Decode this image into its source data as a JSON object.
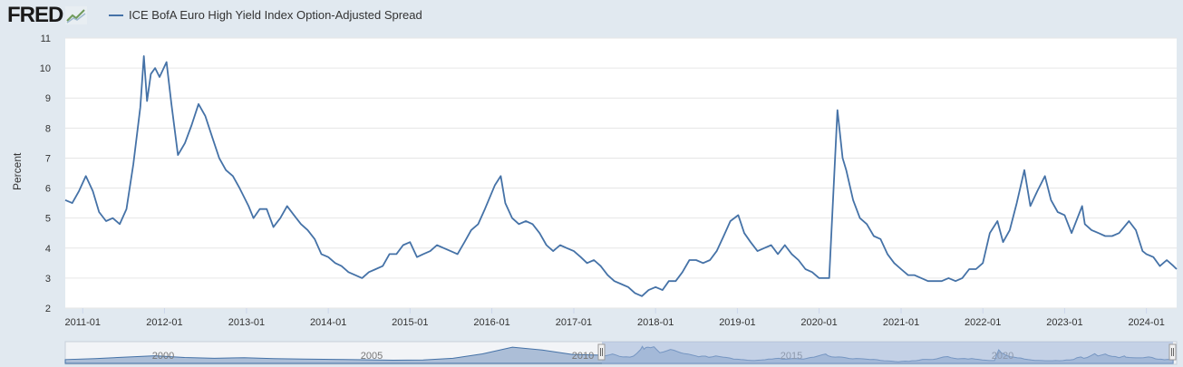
{
  "logo": {
    "text": "FRED",
    "icon": "trend-line-icon"
  },
  "chart_data": {
    "type": "line",
    "title": "",
    "ylabel": "Percent",
    "xlabel": "",
    "ylim": [
      2,
      11
    ],
    "yticks": [
      "2",
      "3",
      "4",
      "5",
      "6",
      "7",
      "8",
      "9",
      "10",
      "11"
    ],
    "xlim": [
      "2010-10-15",
      "2024-05-15"
    ],
    "xticks": [
      "2011-01",
      "2012-01",
      "2013-01",
      "2014-01",
      "2015-01",
      "2016-01",
      "2017-01",
      "2018-01",
      "2019-01",
      "2020-01",
      "2021-01",
      "2022-01",
      "2023-01",
      "2024-01"
    ],
    "grid": true,
    "legend_position": "top-left",
    "colors": {
      "series": "#4572a7",
      "plot_bg": "#ffffff",
      "page_bg": "#e1e9f0",
      "grid": "#e6e6e6"
    },
    "series": [
      {
        "name": "ICE BofA Euro High Yield Index Option-Adjusted Spread",
        "points": [
          [
            "2010-10-15",
            5.6
          ],
          [
            "2010-11-15",
            5.5
          ],
          [
            "2010-12-15",
            5.9
          ],
          [
            "2011-01-15",
            6.4
          ],
          [
            "2011-02-15",
            5.9
          ],
          [
            "2011-03-15",
            5.2
          ],
          [
            "2011-04-15",
            4.9
          ],
          [
            "2011-05-15",
            5.0
          ],
          [
            "2011-06-15",
            4.8
          ],
          [
            "2011-07-15",
            5.3
          ],
          [
            "2011-08-15",
            6.8
          ],
          [
            "2011-09-15",
            8.7
          ],
          [
            "2011-10-01",
            10.4
          ],
          [
            "2011-10-15",
            8.9
          ],
          [
            "2011-11-01",
            9.8
          ],
          [
            "2011-11-20",
            10.0
          ],
          [
            "2011-12-10",
            9.7
          ],
          [
            "2012-01-10",
            10.2
          ],
          [
            "2012-02-01",
            8.8
          ],
          [
            "2012-03-01",
            7.1
          ],
          [
            "2012-04-01",
            7.5
          ],
          [
            "2012-05-01",
            8.1
          ],
          [
            "2012-06-01",
            8.8
          ],
          [
            "2012-07-01",
            8.4
          ],
          [
            "2012-08-01",
            7.7
          ],
          [
            "2012-09-01",
            7.0
          ],
          [
            "2012-10-01",
            6.6
          ],
          [
            "2012-11-01",
            6.4
          ],
          [
            "2012-12-01",
            6.0
          ],
          [
            "2013-01-10",
            5.4
          ],
          [
            "2013-02-01",
            5.0
          ],
          [
            "2013-03-01",
            5.3
          ],
          [
            "2013-04-01",
            5.3
          ],
          [
            "2013-05-01",
            4.7
          ],
          [
            "2013-06-01",
            5.0
          ],
          [
            "2013-07-01",
            5.4
          ],
          [
            "2013-08-01",
            5.1
          ],
          [
            "2013-09-01",
            4.8
          ],
          [
            "2013-10-01",
            4.6
          ],
          [
            "2013-11-01",
            4.3
          ],
          [
            "2013-12-01",
            3.8
          ],
          [
            "2014-01-01",
            3.7
          ],
          [
            "2014-02-01",
            3.5
          ],
          [
            "2014-03-01",
            3.4
          ],
          [
            "2014-04-01",
            3.2
          ],
          [
            "2014-05-01",
            3.1
          ],
          [
            "2014-06-01",
            3.0
          ],
          [
            "2014-07-01",
            3.2
          ],
          [
            "2014-08-01",
            3.3
          ],
          [
            "2014-09-01",
            3.4
          ],
          [
            "2014-10-01",
            3.8
          ],
          [
            "2014-11-01",
            3.8
          ],
          [
            "2014-12-01",
            4.1
          ],
          [
            "2015-01-01",
            4.2
          ],
          [
            "2015-02-01",
            3.7
          ],
          [
            "2015-03-01",
            3.8
          ],
          [
            "2015-04-01",
            3.9
          ],
          [
            "2015-05-01",
            4.1
          ],
          [
            "2015-06-01",
            4.0
          ],
          [
            "2015-07-01",
            3.9
          ],
          [
            "2015-08-01",
            3.8
          ],
          [
            "2015-09-01",
            4.2
          ],
          [
            "2015-10-01",
            4.6
          ],
          [
            "2015-11-01",
            4.8
          ],
          [
            "2015-12-01",
            5.3
          ],
          [
            "2016-01-15",
            6.1
          ],
          [
            "2016-02-10",
            6.4
          ],
          [
            "2016-03-01",
            5.5
          ],
          [
            "2016-04-01",
            5.0
          ],
          [
            "2016-05-01",
            4.8
          ],
          [
            "2016-06-01",
            4.9
          ],
          [
            "2016-07-01",
            4.8
          ],
          [
            "2016-08-01",
            4.5
          ],
          [
            "2016-09-01",
            4.1
          ],
          [
            "2016-10-01",
            3.9
          ],
          [
            "2016-11-01",
            4.1
          ],
          [
            "2016-12-01",
            4.0
          ],
          [
            "2017-01-01",
            3.9
          ],
          [
            "2017-02-01",
            3.7
          ],
          [
            "2017-03-01",
            3.5
          ],
          [
            "2017-04-01",
            3.6
          ],
          [
            "2017-05-01",
            3.4
          ],
          [
            "2017-06-01",
            3.1
          ],
          [
            "2017-07-01",
            2.9
          ],
          [
            "2017-08-01",
            2.8
          ],
          [
            "2017-09-01",
            2.7
          ],
          [
            "2017-10-01",
            2.5
          ],
          [
            "2017-11-01",
            2.4
          ],
          [
            "2017-12-01",
            2.6
          ],
          [
            "2018-01-01",
            2.7
          ],
          [
            "2018-02-01",
            2.6
          ],
          [
            "2018-03-01",
            2.9
          ],
          [
            "2018-04-01",
            2.9
          ],
          [
            "2018-05-01",
            3.2
          ],
          [
            "2018-06-01",
            3.6
          ],
          [
            "2018-07-01",
            3.6
          ],
          [
            "2018-08-01",
            3.5
          ],
          [
            "2018-09-01",
            3.6
          ],
          [
            "2018-10-01",
            3.9
          ],
          [
            "2018-11-01",
            4.4
          ],
          [
            "2018-12-01",
            4.9
          ],
          [
            "2019-01-05",
            5.1
          ],
          [
            "2019-02-01",
            4.5
          ],
          [
            "2019-03-01",
            4.2
          ],
          [
            "2019-04-01",
            3.9
          ],
          [
            "2019-05-01",
            4.0
          ],
          [
            "2019-06-01",
            4.1
          ],
          [
            "2019-07-01",
            3.8
          ],
          [
            "2019-08-01",
            4.1
          ],
          [
            "2019-09-01",
            3.8
          ],
          [
            "2019-10-01",
            3.6
          ],
          [
            "2019-11-01",
            3.3
          ],
          [
            "2019-12-01",
            3.2
          ],
          [
            "2020-01-01",
            3.0
          ],
          [
            "2020-02-15",
            3.0
          ],
          [
            "2020-03-23",
            8.6
          ],
          [
            "2020-04-15",
            7.0
          ],
          [
            "2020-05-01",
            6.6
          ],
          [
            "2020-06-01",
            5.6
          ],
          [
            "2020-07-01",
            5.0
          ],
          [
            "2020-08-01",
            4.8
          ],
          [
            "2020-09-01",
            4.4
          ],
          [
            "2020-10-01",
            4.3
          ],
          [
            "2020-11-01",
            3.8
          ],
          [
            "2020-12-01",
            3.5
          ],
          [
            "2021-01-01",
            3.3
          ],
          [
            "2021-02-01",
            3.1
          ],
          [
            "2021-03-01",
            3.1
          ],
          [
            "2021-04-01",
            3.0
          ],
          [
            "2021-05-01",
            2.9
          ],
          [
            "2021-06-01",
            2.9
          ],
          [
            "2021-07-01",
            2.9
          ],
          [
            "2021-08-01",
            3.0
          ],
          [
            "2021-09-01",
            2.9
          ],
          [
            "2021-10-01",
            3.0
          ],
          [
            "2021-11-01",
            3.3
          ],
          [
            "2021-12-01",
            3.3
          ],
          [
            "2022-01-01",
            3.5
          ],
          [
            "2022-02-01",
            4.5
          ],
          [
            "2022-03-07",
            4.9
          ],
          [
            "2022-04-01",
            4.2
          ],
          [
            "2022-05-01",
            4.6
          ],
          [
            "2022-06-01",
            5.5
          ],
          [
            "2022-07-05",
            6.6
          ],
          [
            "2022-08-01",
            5.4
          ],
          [
            "2022-09-01",
            5.9
          ],
          [
            "2022-10-05",
            6.4
          ],
          [
            "2022-11-01",
            5.6
          ],
          [
            "2022-12-01",
            5.2
          ],
          [
            "2023-01-01",
            5.1
          ],
          [
            "2023-02-01",
            4.5
          ],
          [
            "2023-03-20",
            5.4
          ],
          [
            "2023-04-01",
            4.8
          ],
          [
            "2023-05-01",
            4.6
          ],
          [
            "2023-06-01",
            4.5
          ],
          [
            "2023-07-01",
            4.4
          ],
          [
            "2023-08-01",
            4.4
          ],
          [
            "2023-09-01",
            4.5
          ],
          [
            "2023-10-15",
            4.9
          ],
          [
            "2023-11-15",
            4.6
          ],
          [
            "2023-12-15",
            3.9
          ],
          [
            "2024-01-01",
            3.8
          ],
          [
            "2024-02-01",
            3.7
          ],
          [
            "2024-03-01",
            3.4
          ],
          [
            "2024-04-01",
            3.6
          ],
          [
            "2024-05-01",
            3.4
          ],
          [
            "2024-05-15",
            3.3
          ]
        ]
      }
    ],
    "navigator": {
      "labels": [
        "2000",
        "2005",
        "2010",
        "2015",
        "2020"
      ],
      "series_color": "#4572a7",
      "mask_color": "#9fb4d9"
    }
  }
}
